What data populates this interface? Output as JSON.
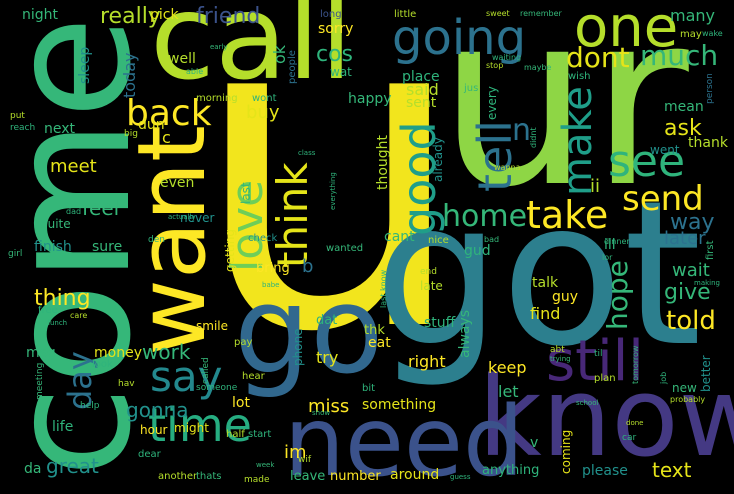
{
  "palette": {
    "bg": "#000000",
    "yellow": "#f6e620",
    "lime": "#8ed645",
    "green": "#35b779",
    "teal": "#21918c",
    "blue": "#31688e",
    "indigo": "#443983",
    "purple": "#440154",
    "mid": "#2c7f8e"
  },
  "words": {
    "u": "u",
    "ur": "ur",
    "got": "got",
    "come": "come",
    "call": "call",
    "know": "know",
    "need": "need",
    "go": "go",
    "want": "want",
    "one": "one",
    "going": "going",
    "love": "love",
    "think": "think",
    "good": "good",
    "time": "time",
    "still": "still",
    "say": "say",
    "back": "back",
    "see": "see",
    "tell": "tell",
    "make": "make",
    "take": "take",
    "home": "home",
    "send": "send",
    "dont": "dont",
    "much": "much",
    "really": "really",
    "friend": "friend",
    "day": "day",
    "hope": "hope",
    "give": "give",
    "told": "told",
    "thing": "thing",
    "meet": "meet",
    "feel": "feel",
    "ask": "ask",
    "way": "way",
    "work": "work",
    "gonna": "gonna",
    "miss": "miss",
    "great": "great",
    "text": "text",
    "wait": "wait",
    "later": "later",
    "thank": "thank",
    "cos": "cos",
    "sorry": "sorry",
    "ok": "ok",
    "night": "night",
    "pick": "pick",
    "many": "many",
    "today": "today",
    "well": "well",
    "sleep": "sleep",
    "buy": "buy",
    "happy": "happy",
    "said": "said",
    "place": "place",
    "sent": "sent",
    "already": "already",
    "thought": "thought",
    "always": "always",
    "keep": "keep",
    "let": "let",
    "something": "something",
    "coming": "coming",
    "please": "please",
    "anything": "anything",
    "around": "around",
    "number": "number",
    "leave": "leave",
    "im": "im",
    "right": "right",
    "try": "try",
    "stuff": "stuff",
    "find": "find",
    "talk": "talk",
    "guy": "guy",
    "late": "late",
    "eat": "eat",
    "thk": "thk",
    "dat": "dat",
    "phone": "phone",
    "bring": "bring",
    "b": "b",
    "cant": "cant",
    "gud": "gud",
    "ill": "ill",
    "ii": "ii",
    "n": "n",
    "mean": "mean",
    "went": "went",
    "even": "even",
    "c": "c",
    "dun": "dun",
    "next": "next",
    "finish": "finish",
    "sure": "sure",
    "msg": "msg",
    "money": "money",
    "da": "da",
    "life": "life",
    "hour": "hour",
    "might": "might",
    "lot": "lot",
    "smile": "smile",
    "getting": "getting",
    "last": "last",
    "never": "never",
    "wat": "wat",
    "new": "new",
    "better": "better",
    "first": "first",
    "person": "person",
    "v": "v",
    "quite": "quite",
    "morning": "morning",
    "wont": "wont",
    "people": "people",
    "long": "long",
    "little": "little",
    "sweet": "sweet",
    "remember": "remember",
    "wish": "wish",
    "jus": "jus",
    "every": "every",
    "waiting": "waiting",
    "stop": "stop",
    "maybe": "maybe",
    "may": "may",
    "wake": "wake",
    "nice": "nice",
    "check": "check",
    "wanted": "wanted",
    "dinner": "dinner",
    "bad": "bad",
    "tomorrow": "tomorrow",
    "plan": "plan",
    "job": "job",
    "probably": "probably",
    "abt": "abt",
    "til": "til",
    "bit": "bit",
    "hear": "hear",
    "pay": "pay",
    "called": "called",
    "half": "half",
    "start": "start",
    "dear": "dear",
    "another": "another",
    "thats": "thats",
    "made": "made",
    "week": "week",
    "wif": "wif",
    "guess": "guess",
    "car": "car",
    "done": "done",
    "school": "school",
    "meeting": "meeting",
    "help": "help",
    "look": "look",
    "hav": "hav",
    "free": "free",
    "care": "care",
    "lunch": "lunch",
    "girl": "girl",
    "den": "den",
    "dad": "dad",
    "put": "put",
    "reach": "reach",
    "big": "big",
    "able": "able",
    "early": "early",
    "lor": "lor",
    "babe": "babe",
    "end": "end",
    "someone": "someone",
    "last_know": "last know",
    "wanna": "wanna",
    "didnt": "didnt",
    "trying": "trying",
    "actually": "actually",
    "say_small": "say",
    "everything": "everything",
    "making": "making",
    "tonight": "tonight",
    "use": "use",
    "best": "best",
    "mind": "mind",
    "show": "show",
    "class": "class",
    "sms": "sms",
    "lol": "lol",
    "min": "min",
    "oso": "oso",
    "cause": "cause",
    "tot": "tot",
    "ready": "ready",
    "hey": "hey",
    "da_small": "da",
    "ok_small": "ok"
  }
}
